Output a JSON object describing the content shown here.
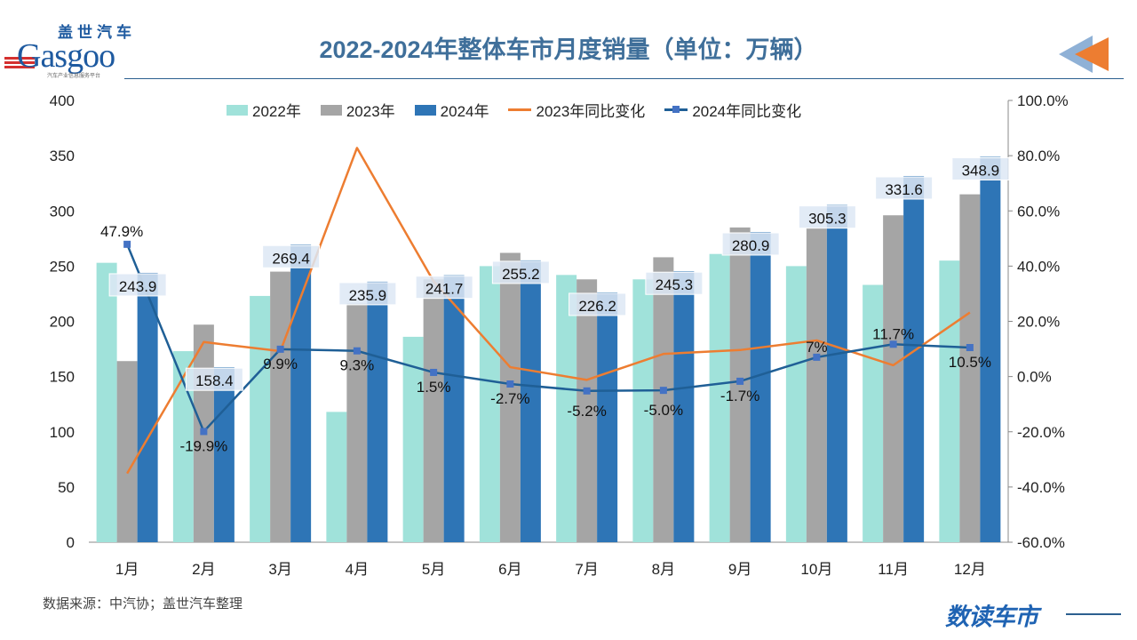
{
  "logo": {
    "cn": "盖世汽车",
    "en": "Gasgoo",
    "sub": "汽车产业信息服务平台"
  },
  "title": "2022-2024年整体车市月度销量（单位：万辆）",
  "source": "数据来源：中汽协；盖世汽车整理",
  "brand": "数读车市",
  "colors": {
    "s2022": "#a0e2da",
    "s2023": "#a5a5a5",
    "s2024": "#2e75b6",
    "yoy2023": "#ed7d31",
    "yoy2024": "#1f5f96",
    "title": "#3f6f9a"
  },
  "chart_data": {
    "type": "bar+line",
    "categories": [
      "1月",
      "2月",
      "3月",
      "4月",
      "5月",
      "6月",
      "7月",
      "8月",
      "9月",
      "10月",
      "11月",
      "12月"
    ],
    "series": [
      {
        "name": "2022年",
        "type": "bar",
        "axis": "left",
        "values": [
          253,
          173,
          223,
          118,
          186,
          250,
          242,
          238,
          261,
          250,
          233,
          255
        ]
      },
      {
        "name": "2023年",
        "type": "bar",
        "axis": "left",
        "values": [
          164,
          197,
          245,
          216,
          238,
          262,
          238,
          258,
          285,
          285,
          296,
          315
        ]
      },
      {
        "name": "2024年",
        "type": "bar",
        "axis": "left",
        "values": [
          243.9,
          158.4,
          269.4,
          235.9,
          241.7,
          255.2,
          226.2,
          245.3,
          280.9,
          305.3,
          331.6,
          348.9
        ],
        "labels": [
          "243.9",
          "158.4",
          "269.4",
          "235.9",
          "241.7",
          "255.2",
          "226.2",
          "245.3",
          "280.9",
          "305.3",
          "331.6",
          "348.9"
        ]
      },
      {
        "name": "2023年同比变化",
        "type": "line",
        "axis": "right",
        "values": [
          -35.1,
          12.5,
          9.2,
          82.8,
          34.5,
          3.4,
          -1.2,
          8.2,
          9.6,
          13.1,
          4.1,
          23.2
        ]
      },
      {
        "name": "2024年同比变化",
        "type": "line",
        "axis": "right",
        "marker": "square",
        "values": [
          47.9,
          -19.9,
          9.9,
          9.3,
          1.5,
          -2.7,
          -5.2,
          -5.0,
          -1.7,
          7,
          11.7,
          10.5
        ],
        "labels": [
          "47.9%",
          "-19.9%",
          "9.9%",
          "9.3%",
          "1.5%",
          "-2.7%",
          "-5.2%",
          "-5.0%",
          "-1.7%",
          "7%",
          "11.7%",
          "10.5%"
        ]
      }
    ],
    "y_left": {
      "range": [
        0,
        400
      ],
      "ticks": [
        "0",
        "50",
        "100",
        "150",
        "200",
        "250",
        "300",
        "350",
        "400"
      ]
    },
    "y_right": {
      "range": [
        -60,
        100
      ],
      "ticks": [
        "-60.0%",
        "-40.0%",
        "-20.0%",
        "0.0%",
        "20.0%",
        "40.0%",
        "60.0%",
        "80.0%",
        "100.0%"
      ]
    },
    "legend": "top",
    "grid": false
  }
}
